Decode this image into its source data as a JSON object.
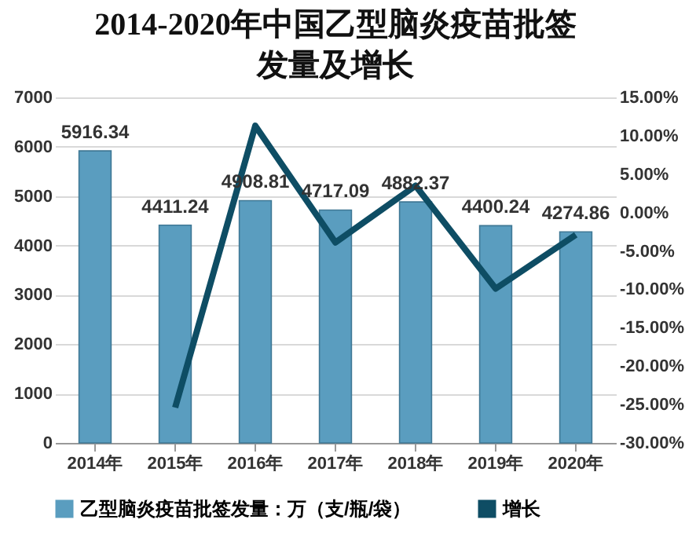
{
  "chart_data": {
    "type": "bar",
    "title": "2014-2020年中国乙型脑炎疫苗批签发量及增长",
    "categories": [
      "2014年",
      "2015年",
      "2016年",
      "2017年",
      "2018年",
      "2019年",
      "2020年"
    ],
    "series": [
      {
        "name": "乙型脑炎疫苗批签发量：万（支/瓶/袋）",
        "color": "#5a9dbf",
        "values": [
          5916.34,
          4411.24,
          4908.81,
          4717.09,
          4882.37,
          4400.24,
          4274.86
        ],
        "value_labels": [
          "5916.34",
          "4411.24",
          "4908.81",
          "4717.09",
          "4882.37",
          "4400.24",
          "4274.86"
        ]
      },
      {
        "name": "增长",
        "type": "line",
        "axis": "y2",
        "color": "#0e4d64",
        "values": [
          null,
          -25.4,
          11.3,
          -3.9,
          3.5,
          -9.9,
          -2.9
        ]
      }
    ],
    "ylim": [
      0,
      7000
    ],
    "yticks": [
      0,
      1000,
      2000,
      3000,
      4000,
      5000,
      6000,
      7000
    ],
    "y2lim": [
      -30,
      15
    ],
    "y2ticks": [
      {
        "value": -30,
        "label": "-30.00%"
      },
      {
        "value": -25,
        "label": "-25.00%"
      },
      {
        "value": -20,
        "label": "-20.00%"
      },
      {
        "value": -15,
        "label": "-15.00%"
      },
      {
        "value": -10,
        "label": "-10.00%"
      },
      {
        "value": -5,
        "label": "-5.00%"
      },
      {
        "value": 0,
        "label": "0.00%"
      },
      {
        "value": 5,
        "label": "5.00%"
      },
      {
        "value": 10,
        "label": "10.00%"
      },
      {
        "value": 15,
        "label": "15.00%"
      }
    ],
    "grid": "y",
    "legend": "bottom",
    "marker": "none",
    "line_style": "solid"
  }
}
